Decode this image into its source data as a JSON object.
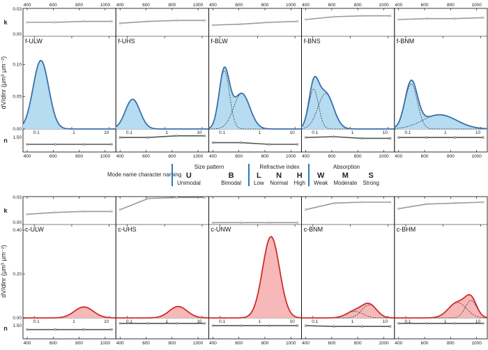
{
  "chart_data": {
    "type": "area",
    "y_axis_labels": {
      "k": "k",
      "n": "n",
      "dist": "dV/dlnr (μm³ μm⁻²)"
    },
    "wavelength_ticks": [
      "400",
      "600",
      "800",
      "1000"
    ],
    "radius_ticks": [
      "0.1",
      "1",
      "10"
    ],
    "panels": [
      {
        "row": "fine",
        "name": "f-ULW",
        "k_ticks": [
          "0.03",
          "0.00"
        ],
        "k_range": [
          0,
          0.03
        ],
        "k": [
          0.015,
          0.015,
          0.016,
          0.016
        ],
        "n_ticks": [
          "1.50"
        ],
        "n_range": [
          1.33,
          1.6
        ],
        "n": [
          1.42,
          1.42,
          1.42,
          1.42
        ],
        "dist_ticks": [
          "0.10",
          "0.05",
          "0.00"
        ],
        "dist_range": [
          0,
          0.135
        ],
        "modes": [
          {
            "amp": 0.106,
            "mu": 0.15,
            "sigma": 0.48
          }
        ],
        "show_modes": false
      },
      {
        "row": "fine",
        "name": "f-UHS",
        "k_ticks": [],
        "k_range": [
          0,
          0.03
        ],
        "k": [
          0.014,
          0.016,
          0.017,
          0.017
        ],
        "n_ticks": [],
        "n_range": [
          1.33,
          1.6
        ],
        "n": [
          1.5,
          1.5,
          1.52,
          1.52
        ],
        "dist_ticks": [],
        "dist_range": [
          0,
          0.135
        ],
        "modes": [
          {
            "amp": 0.046,
            "mu": 0.14,
            "sigma": 0.45
          }
        ],
        "show_modes": false
      },
      {
        "row": "fine",
        "name": "f-BLW",
        "k_ticks": [],
        "k_range": [
          0,
          0.03
        ],
        "k": [
          0.012,
          0.013,
          0.015,
          0.016
        ],
        "n_ticks": [],
        "n_range": [
          1.33,
          1.6
        ],
        "n": [
          1.44,
          1.44,
          1.42,
          1.42
        ],
        "dist_ticks": [],
        "dist_range": [
          0,
          0.135
        ],
        "modes": [
          {
            "amp": 0.09,
            "mu": 0.13,
            "sigma": 0.32
          },
          {
            "amp": 0.055,
            "mu": 0.38,
            "sigma": 0.5
          }
        ],
        "show_modes": true
      },
      {
        "row": "fine",
        "name": "f-BNS",
        "k_ticks": [],
        "k_range": [
          0,
          0.03
        ],
        "k": [
          0.018,
          0.021,
          0.022,
          0.022
        ],
        "n_ticks": [],
        "n_range": [
          1.33,
          1.6
        ],
        "n": [
          1.5,
          1.51,
          1.49,
          1.49
        ],
        "dist_ticks": [],
        "dist_range": [
          0,
          0.135
        ],
        "modes": [
          {
            "amp": 0.062,
            "mu": 0.105,
            "sigma": 0.3
          },
          {
            "amp": 0.055,
            "mu": 0.22,
            "sigma": 0.48
          }
        ],
        "show_modes": true
      },
      {
        "row": "fine",
        "name": "f-BNM",
        "k_ticks": [],
        "k_range": [
          0,
          0.03
        ],
        "k": [
          0.018,
          0.019,
          0.019,
          0.02
        ],
        "n_ticks": [],
        "n_range": [
          1.33,
          1.6
        ],
        "n": [
          1.5,
          1.5,
          1.5,
          1.5
        ],
        "dist_ticks": [],
        "dist_range": [
          0,
          0.135
        ],
        "modes": [
          {
            "amp": 0.07,
            "mu": 0.14,
            "sigma": 0.38
          },
          {
            "amp": 0.022,
            "mu": 0.8,
            "sigma": 1.05
          }
        ],
        "show_modes": true
      },
      {
        "row": "coarse",
        "name": "c-ULW",
        "k_ticks": [
          "0.03",
          "0.00"
        ],
        "k_range": [
          0,
          0.03
        ],
        "k": [
          0.011,
          0.013,
          0.014,
          0.014
        ],
        "n_ticks": [
          "1.50"
        ],
        "n_range": [
          1.33,
          1.6
        ],
        "n": [
          1.45,
          1.45,
          1.45,
          1.45
        ],
        "dist_ticks": [
          "0.40",
          "0.20",
          "0.00"
        ],
        "dist_range": [
          0,
          0.4
        ],
        "modes": [
          {
            "amp": 0.05,
            "mu": 2.1,
            "sigma": 0.58
          }
        ],
        "show_modes": false
      },
      {
        "row": "coarse",
        "name": "c-UHS",
        "k_ticks": [],
        "k_range": [
          0,
          0.03
        ],
        "k": [
          0.016,
          0.028,
          0.029,
          0.029
        ],
        "n_ticks": [],
        "n_range": [
          1.33,
          1.6
        ],
        "n": [
          1.53,
          1.53,
          1.53,
          1.53
        ],
        "dist_ticks": [],
        "dist_range": [
          0,
          0.4
        ],
        "modes": [
          {
            "amp": 0.052,
            "mu": 2.3,
            "sigma": 0.55
          }
        ],
        "show_modes": false
      },
      {
        "row": "coarse",
        "name": "c-UNW",
        "k_ticks": [],
        "k_range": [
          0,
          0.03
        ],
        "k": [
          0.002,
          0.002,
          0.002,
          0.002
        ],
        "n_ticks": [],
        "n_range": [
          1.33,
          1.6
        ],
        "n": [
          1.5,
          1.5,
          1.5,
          1.5
        ],
        "dist_ticks": [],
        "dist_range": [
          0,
          0.4
        ],
        "modes": [
          {
            "amp": 0.37,
            "mu": 2.3,
            "sigma": 0.52
          }
        ],
        "show_modes": false
      },
      {
        "row": "coarse",
        "name": "c-BNM",
        "k_ticks": [],
        "k_range": [
          0,
          0.03
        ],
        "k": [
          0.016,
          0.023,
          0.024,
          0.024
        ],
        "n_ticks": [],
        "n_range": [
          1.33,
          1.6
        ],
        "n": [
          1.5,
          1.49,
          1.49,
          1.49
        ],
        "dist_ticks": [],
        "dist_range": [
          0,
          0.4
        ],
        "modes": [
          {
            "amp": 0.03,
            "mu": 1.3,
            "sigma": 0.5
          },
          {
            "amp": 0.06,
            "mu": 3.2,
            "sigma": 0.45
          }
        ],
        "show_modes": true
      },
      {
        "row": "coarse",
        "name": "c-BHM",
        "k_ticks": [],
        "k_range": [
          0,
          0.03
        ],
        "k": [
          0.017,
          0.022,
          0.023,
          0.024
        ],
        "n_ticks": [],
        "n_range": [
          1.33,
          1.6
        ],
        "n": [
          1.53,
          1.53,
          1.53,
          1.53
        ],
        "dist_ticks": [],
        "dist_range": [
          0,
          0.4
        ],
        "modes": [
          {
            "amp": 0.07,
            "mu": 2.4,
            "sigma": 0.55
          },
          {
            "amp": 0.08,
            "mu": 5.5,
            "sigma": 0.35
          }
        ],
        "show_modes": true
      }
    ]
  },
  "legend": {
    "note": "Mode name character naming",
    "groups": [
      {
        "title": "Size pattern",
        "items": [
          {
            "letter": "U",
            "label": "Unimodal"
          },
          {
            "letter": "B",
            "label": "Bimodal"
          }
        ]
      },
      {
        "title": "Refractive index",
        "items": [
          {
            "letter": "L",
            "label": "Low"
          },
          {
            "letter": "N",
            "label": "Normal"
          },
          {
            "letter": "H",
            "label": "High"
          }
        ]
      },
      {
        "title": "Absorption",
        "items": [
          {
            "letter": "W",
            "label": "Weak"
          },
          {
            "letter": "M",
            "label": "Moderate"
          },
          {
            "letter": "S",
            "label": "Strong"
          }
        ]
      }
    ]
  },
  "colors": {
    "fine_line": "#3a6fa8",
    "fine_fill": "#b6dcf2",
    "coarse_line": "#d12b2b",
    "coarse_fill": "#f6b8b8",
    "spectral_line": "#9a9a9a",
    "n_line": "#555555",
    "mode_line": "#222222",
    "legend_bar": "#2b7bb9"
  }
}
